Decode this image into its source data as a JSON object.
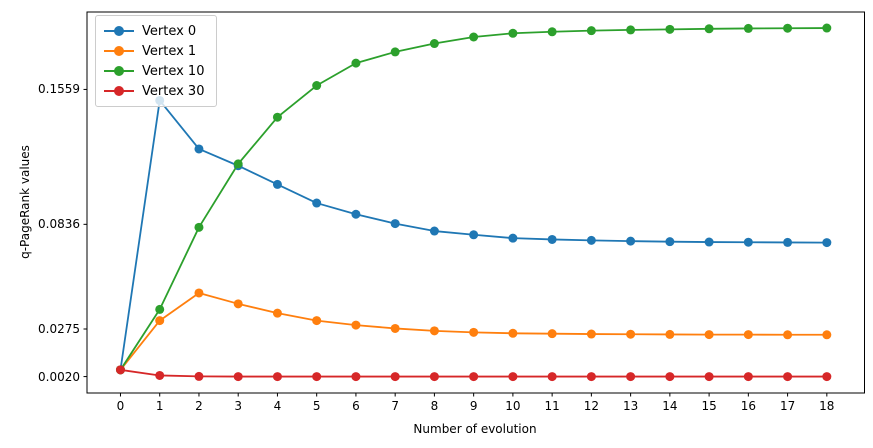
{
  "figure": {
    "background": "#ffffff",
    "text_color": "#000000",
    "spine_color": "#000000"
  },
  "chart_data": {
    "type": "line",
    "title": "",
    "xlabel": "Number of evolution",
    "ylabel": "q-PageRank values",
    "grid": false,
    "legend_position": "upper left",
    "xlim": [
      -0.853,
      18.96
    ],
    "ylim": [
      -0.0068,
      0.1974
    ],
    "x": [
      0,
      1,
      2,
      3,
      4,
      5,
      6,
      7,
      8,
      9,
      10,
      11,
      12,
      13,
      14,
      15,
      16,
      17,
      18
    ],
    "x_tick_labels": [
      "0",
      "1",
      "2",
      "3",
      "4",
      "5",
      "6",
      "7",
      "8",
      "9",
      "10",
      "11",
      "12",
      "13",
      "14",
      "15",
      "16",
      "17",
      "18"
    ],
    "y_tick_values": [
      0.002,
      0.0275,
      0.0836,
      0.1559
    ],
    "y_tick_labels": [
      "0.0020",
      "0.0275",
      "0.0836",
      "0.1559"
    ],
    "marker": "circle",
    "series": [
      {
        "name": "Vertex 0",
        "color": "#1f77b4",
        "values": [
          0.0056,
          0.15,
          0.124,
          0.115,
          0.105,
          0.095,
          0.089,
          0.084,
          0.08,
          0.078,
          0.0762,
          0.0755,
          0.075,
          0.0746,
          0.0743,
          0.0741,
          0.074,
          0.0739,
          0.0738
        ]
      },
      {
        "name": "Vertex 1",
        "color": "#ff7f0e",
        "values": [
          0.0056,
          0.032,
          0.0468,
          0.041,
          0.036,
          0.032,
          0.0296,
          0.0278,
          0.0265,
          0.0257,
          0.0252,
          0.025,
          0.0248,
          0.0247,
          0.0246,
          0.0245,
          0.0245,
          0.0244,
          0.0244
        ]
      },
      {
        "name": "Vertex 10",
        "color": "#2ca02c",
        "values": [
          0.0056,
          0.038,
          0.082,
          0.116,
          0.141,
          0.158,
          0.17,
          0.176,
          0.1805,
          0.184,
          0.186,
          0.1868,
          0.1874,
          0.1878,
          0.1881,
          0.1884,
          0.1886,
          0.1887,
          0.1888
        ]
      },
      {
        "name": "Vertex 30",
        "color": "#d62728",
        "values": [
          0.0056,
          0.0026,
          0.0021,
          0.002,
          0.002,
          0.002,
          0.002,
          0.002,
          0.002,
          0.002,
          0.002,
          0.002,
          0.002,
          0.002,
          0.002,
          0.002,
          0.002,
          0.002,
          0.002
        ]
      }
    ]
  }
}
